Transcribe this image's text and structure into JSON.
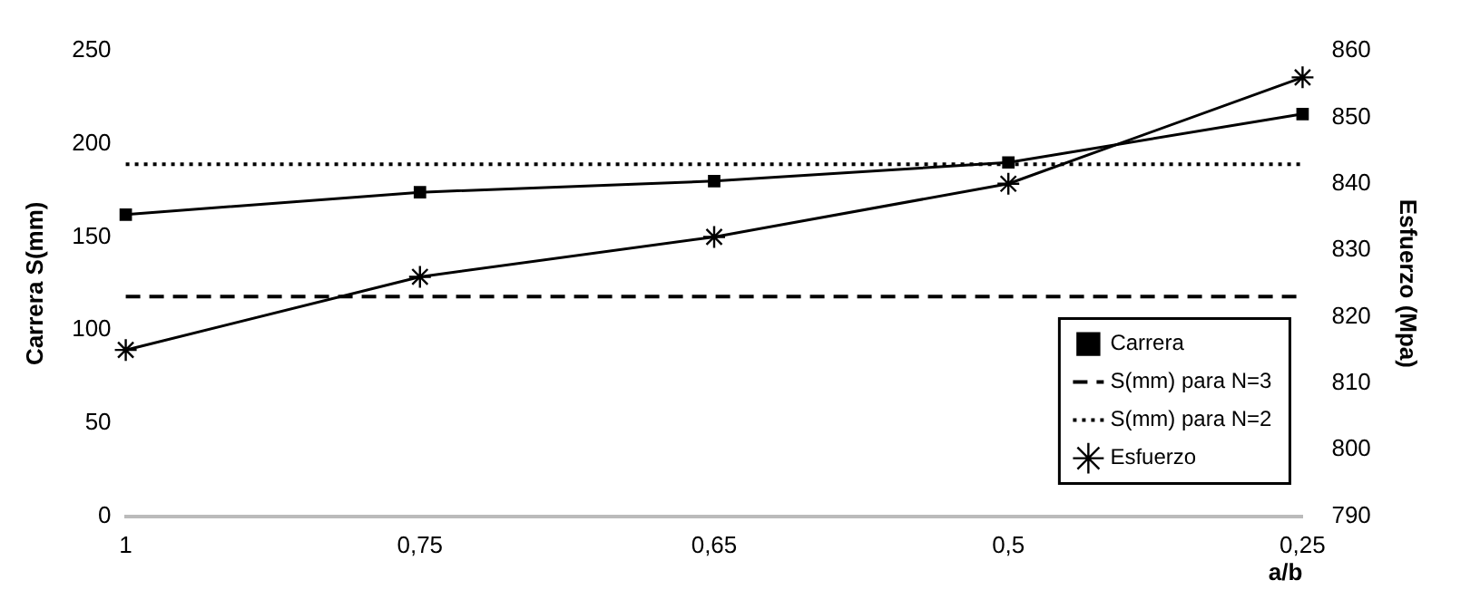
{
  "chart_data": {
    "type": "line",
    "xlabel": "a/b",
    "ylabel": "Carrera S(mm)",
    "y2label": "Esfuerzo (Mpa)",
    "categories": [
      "1",
      "0,75",
      "0,65",
      "0,5",
      "0,25"
    ],
    "series": [
      {
        "name": "Carrera",
        "color": "#000000",
        "marker": "square",
        "line_style": "solid",
        "values": [
          162,
          174,
          180,
          190,
          216
        ]
      },
      {
        "name": "S(mm) para N=3",
        "color": "#000000",
        "marker": "none",
        "line_style": "dashed",
        "values": [
          118,
          118,
          118,
          118,
          118
        ]
      },
      {
        "name": "S(mm) para N=2",
        "color": "#000000",
        "marker": "none",
        "line_style": "dotted",
        "values": [
          189,
          189,
          189,
          189,
          189
        ]
      },
      {
        "name": "Esfuerzo",
        "color": "#000000",
        "marker": "cross",
        "line_style": "solid",
        "axis": "y2",
        "values": [
          815,
          826,
          832,
          840,
          856
        ]
      }
    ],
    "ylim": [
      0,
      250
    ],
    "yticks": [
      0,
      50,
      100,
      150,
      200,
      250
    ],
    "y2lim": [
      790,
      860
    ],
    "y2ticks": [
      790,
      800,
      810,
      820,
      830,
      840,
      850,
      860
    ],
    "grid": false,
    "legend": "bottom right"
  }
}
